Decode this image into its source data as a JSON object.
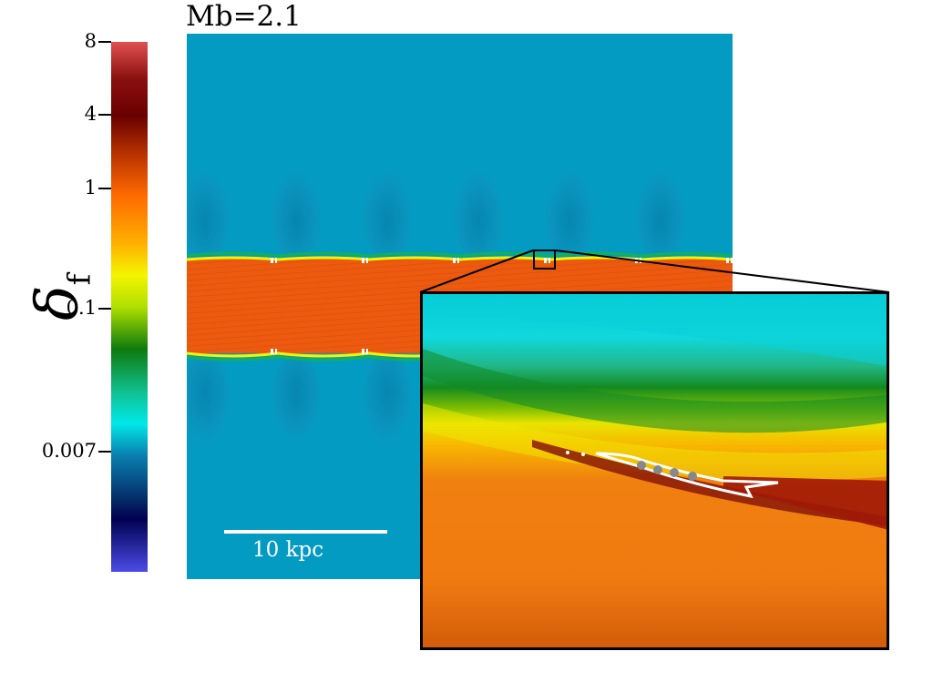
{
  "title": "Mb=2.1",
  "colorbar": {
    "label": "δ",
    "label_sub": "f",
    "ticks": [
      "8",
      "4",
      "1",
      "0.1",
      "0.007"
    ],
    "colors": [
      "#e05050",
      "#6a0000",
      "#ff6a00",
      "#f4f400",
      "#0e7a0e",
      "#00e8e8",
      "#000050",
      "#4b4be6"
    ]
  },
  "scalebar": {
    "label": "10 kpc"
  },
  "colors": {
    "background_fluid": "#049bc2",
    "stream": "#ec5a10",
    "inset_top": "#06c8d4",
    "inset_bottom": "#f08010"
  }
}
